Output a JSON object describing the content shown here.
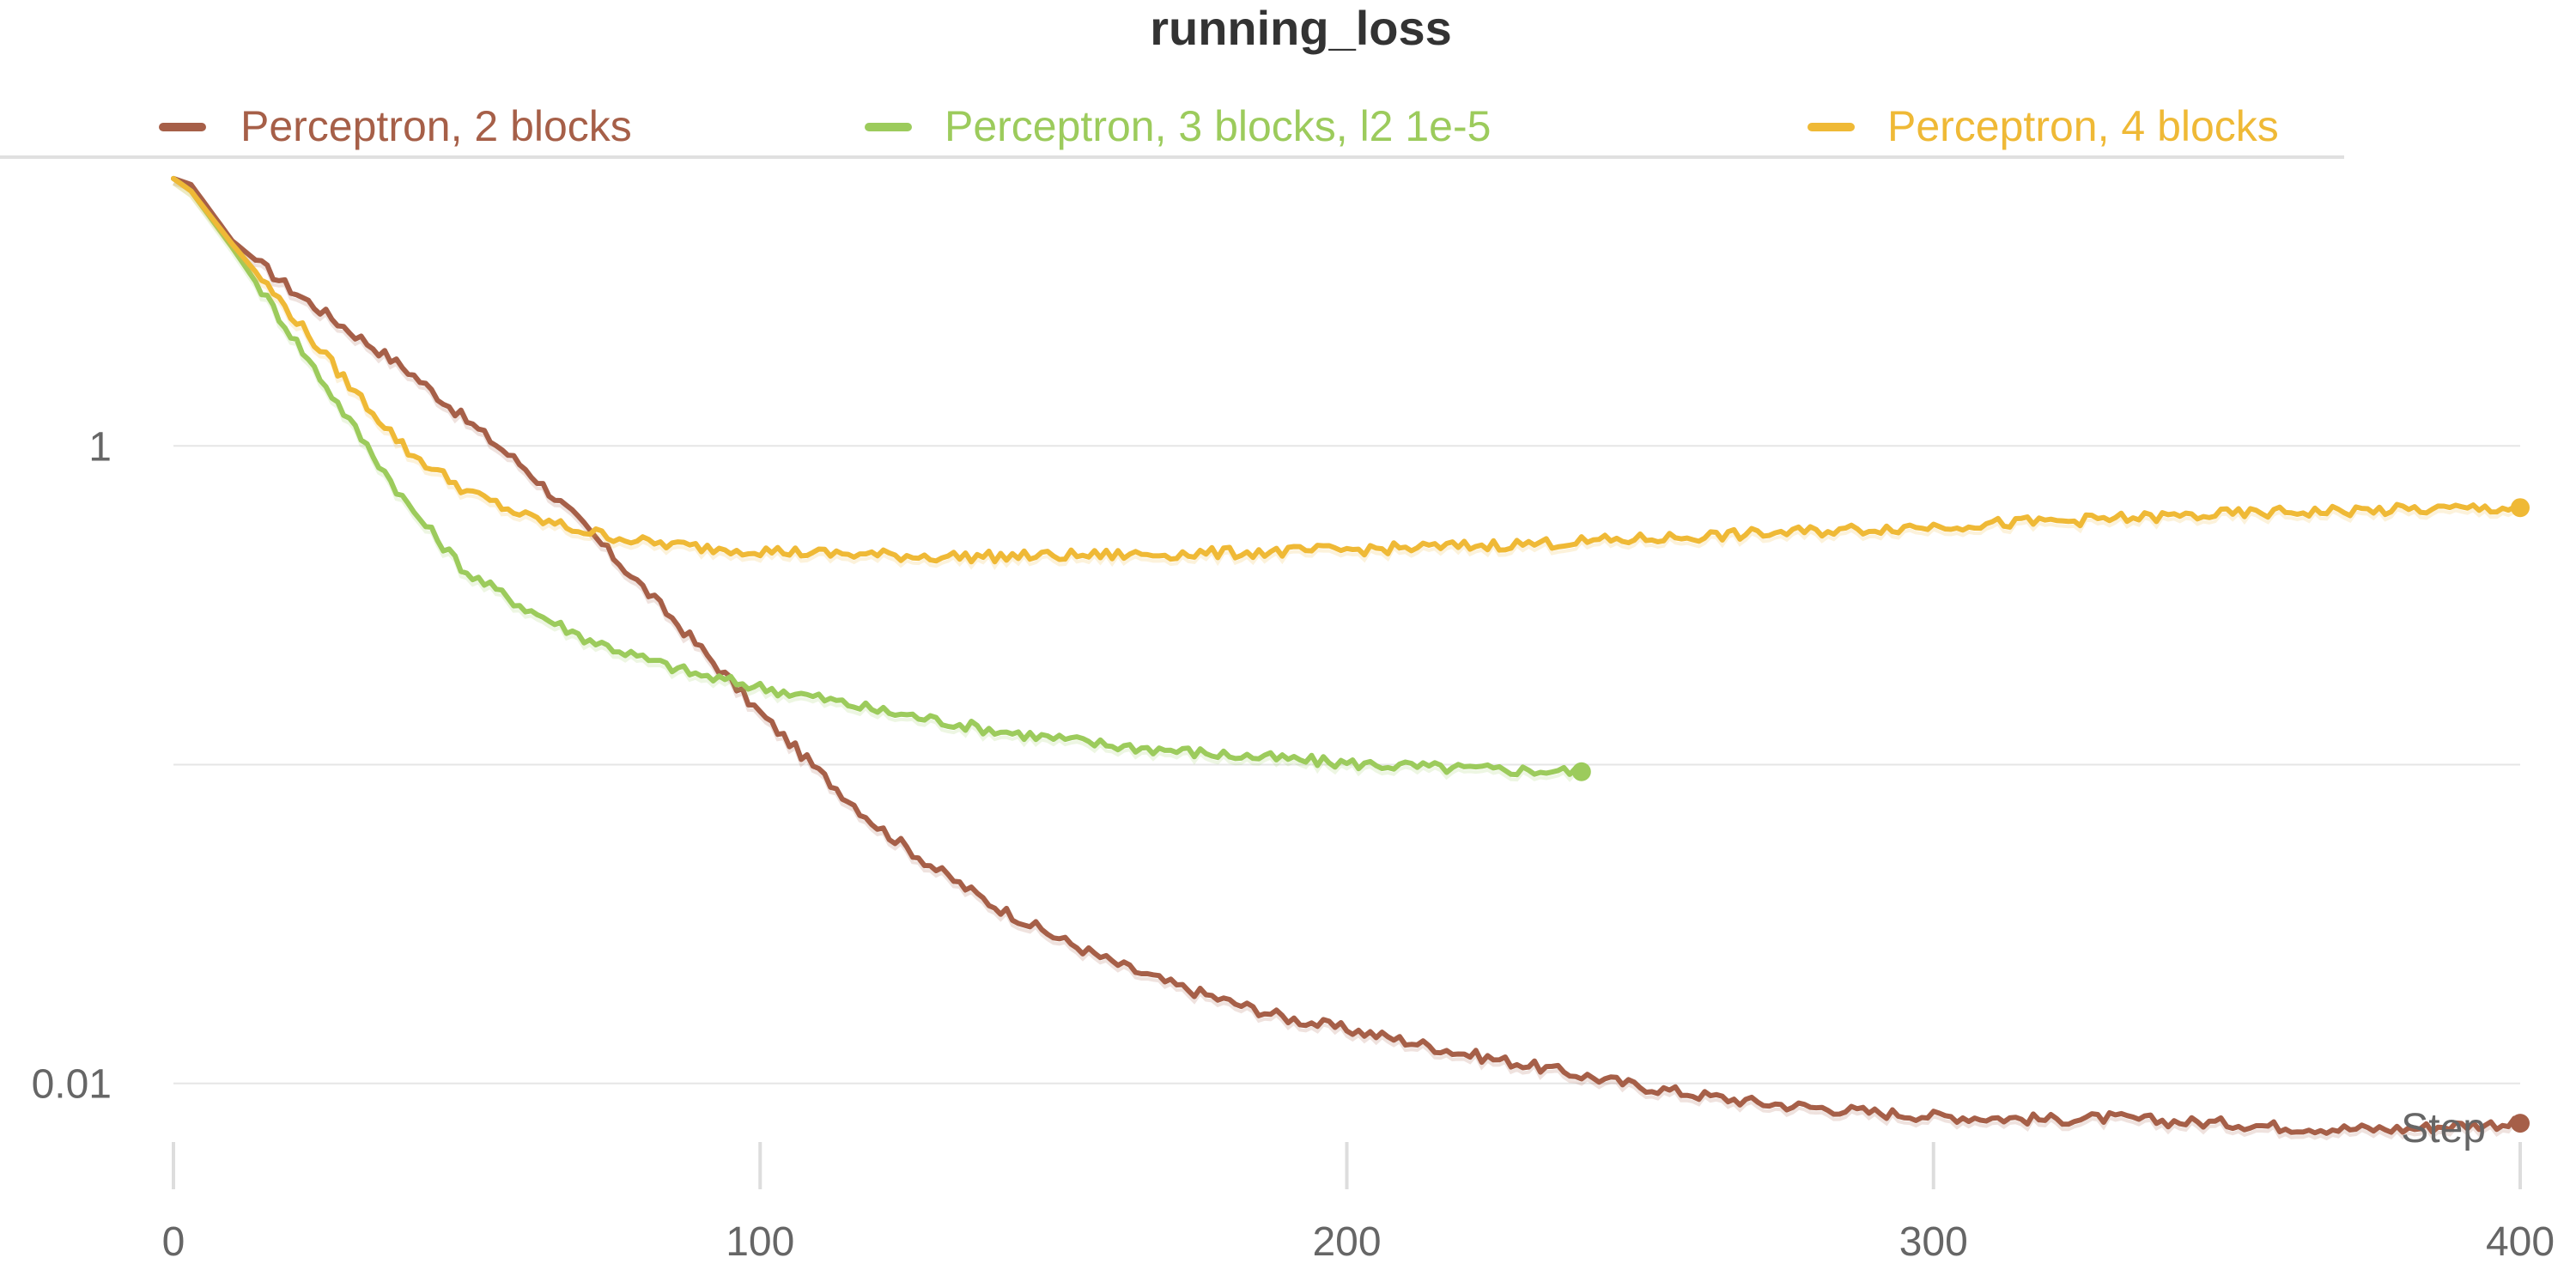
{
  "chart_data": {
    "type": "line",
    "title": "running_loss",
    "xlabel": "Step",
    "ylabel": "",
    "xlim": [
      0,
      400
    ],
    "ylim_log10": [
      -2.13,
      0.86
    ],
    "yscale": "log",
    "grid": true,
    "legend_position": "top",
    "x_ticks": [
      "0",
      "100",
      "200",
      "300",
      "400"
    ],
    "y_ticks": [
      {
        "value": 1,
        "label": "1"
      },
      {
        "value": 0.1,
        "label": ""
      },
      {
        "value": 0.01,
        "label": "0.01"
      }
    ],
    "series": [
      {
        "name": "Perceptron, 2 blocks",
        "color": "#a65f48",
        "x": [
          0,
          3,
          10,
          20,
          30,
          40,
          50,
          60,
          70,
          80,
          90,
          100,
          110,
          120,
          130,
          140,
          150,
          160,
          170,
          180,
          190,
          200,
          210,
          220,
          230,
          240,
          250,
          260,
          270,
          280,
          290,
          300,
          310,
          320,
          330,
          340,
          350,
          360,
          370,
          380,
          390,
          400
        ],
        "y": [
          6.9,
          6.6,
          4.4,
          3.1,
          2.3,
          1.72,
          1.2,
          0.85,
          0.56,
          0.36,
          0.23,
          0.145,
          0.095,
          0.064,
          0.047,
          0.036,
          0.029,
          0.024,
          0.0205,
          0.018,
          0.016,
          0.0148,
          0.0136,
          0.0124,
          0.0115,
          0.0106,
          0.0098,
          0.0092,
          0.0087,
          0.0084,
          0.0081,
          0.0079,
          0.0078,
          0.0077,
          0.0078,
          0.0076,
          0.0075,
          0.0073,
          0.0072,
          0.0072,
          0.0074,
          0.0075
        ]
      },
      {
        "name": "Perceptron, 3 blocks, l2 1e-5",
        "color": "#9ccb5c",
        "x": [
          0,
          3,
          10,
          20,
          30,
          40,
          50,
          60,
          70,
          80,
          90,
          100,
          110,
          120,
          130,
          140,
          150,
          160,
          170,
          180,
          190,
          200,
          210,
          220,
          230,
          240
        ],
        "y": [
          6.9,
          6.3,
          4.2,
          2.25,
          1.2,
          0.65,
          0.4,
          0.31,
          0.25,
          0.215,
          0.19,
          0.175,
          0.162,
          0.148,
          0.138,
          0.128,
          0.121,
          0.115,
          0.111,
          0.107,
          0.104,
          0.101,
          0.099,
          0.097,
          0.096,
          0.095
        ]
      },
      {
        "name": "Perceptron, 4 blocks",
        "color": "#efb936",
        "x": [
          0,
          3,
          10,
          20,
          30,
          40,
          50,
          60,
          70,
          80,
          90,
          100,
          110,
          120,
          130,
          140,
          150,
          160,
          170,
          180,
          190,
          200,
          210,
          220,
          230,
          240,
          250,
          260,
          270,
          280,
          290,
          300,
          310,
          320,
          330,
          340,
          350,
          360,
          370,
          380,
          390,
          400
        ],
        "y": [
          6.9,
          6.3,
          4.3,
          2.6,
          1.55,
          0.96,
          0.72,
          0.6,
          0.54,
          0.5,
          0.48,
          0.47,
          0.46,
          0.455,
          0.45,
          0.45,
          0.452,
          0.455,
          0.458,
          0.462,
          0.466,
          0.472,
          0.478,
          0.485,
          0.492,
          0.5,
          0.51,
          0.52,
          0.53,
          0.54,
          0.55,
          0.56,
          0.57,
          0.58,
          0.59,
          0.6,
          0.61,
          0.62,
          0.625,
          0.63,
          0.635,
          0.64
        ]
      }
    ]
  }
}
